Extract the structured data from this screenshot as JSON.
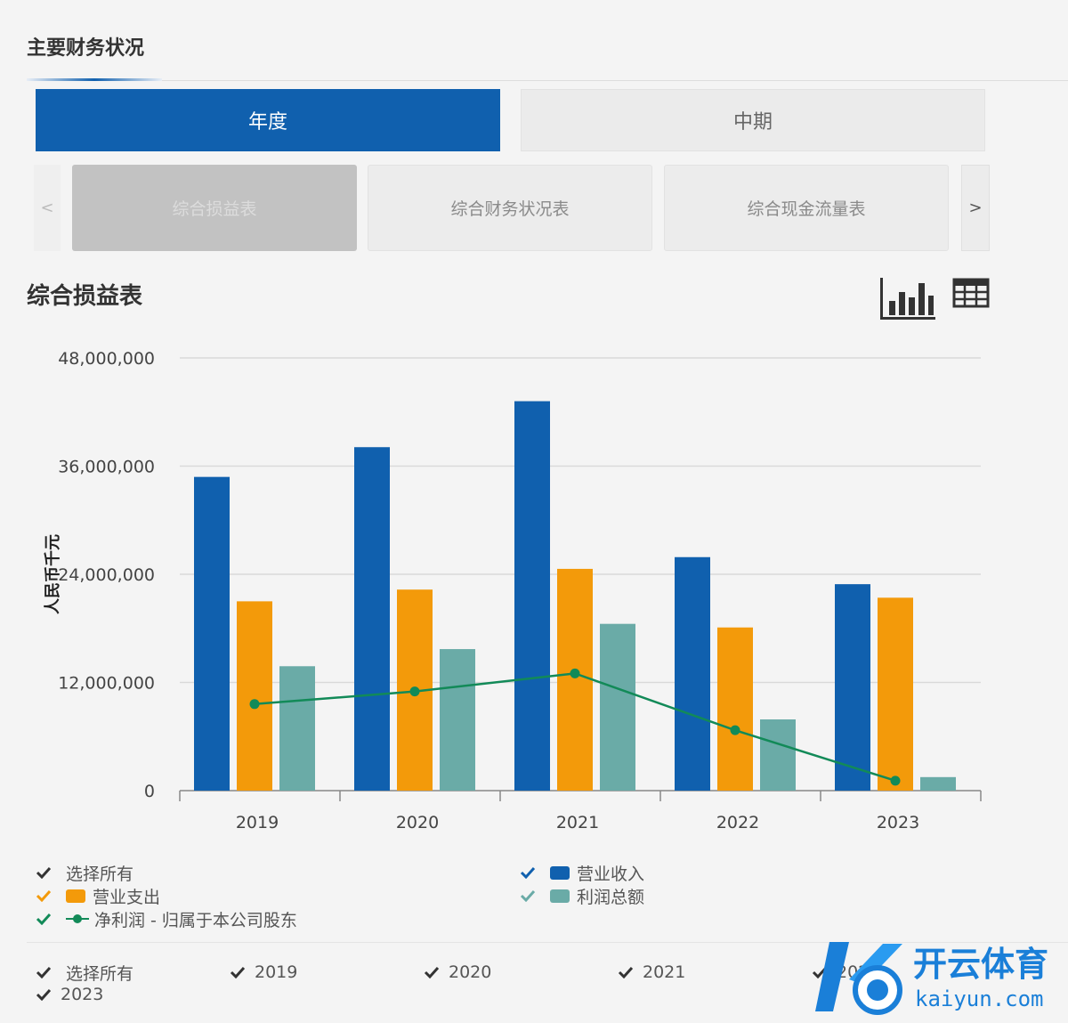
{
  "header": {
    "title": "主要财务状况"
  },
  "period_tabs": [
    {
      "label": "年度",
      "active": true
    },
    {
      "label": "中期",
      "active": false
    }
  ],
  "statement_tabs": {
    "prev": "<",
    "next": ">",
    "items": [
      {
        "label": "综合损益表",
        "active": true
      },
      {
        "label": "综合财务状况表",
        "active": false
      },
      {
        "label": "综合现金流量表",
        "active": false
      }
    ]
  },
  "chart_section": {
    "title": "综合损益表",
    "view_icons": [
      "bar-chart-icon",
      "table-icon"
    ]
  },
  "chart_data": {
    "type": "bar",
    "title": "",
    "xlabel": "",
    "ylabel": "人民币千元",
    "categories": [
      "2019",
      "2020",
      "2021",
      "2022",
      "2023"
    ],
    "ylim": [
      0,
      48000000
    ],
    "yticks": [
      "0",
      "12,000,000",
      "24,000,000",
      "36,000,000",
      "48,000,000"
    ],
    "ytick_values": [
      0,
      12000000,
      24000000,
      36000000,
      48000000
    ],
    "grid": true,
    "legend_position": "bottom",
    "series": [
      {
        "name": "营业收入",
        "kind": "bar",
        "color": "#1060ae",
        "values": [
          34800000,
          38100000,
          43200000,
          25900000,
          22900000
        ]
      },
      {
        "name": "营业支出",
        "kind": "bar",
        "color": "#f39a0a",
        "values": [
          21000000,
          22300000,
          24600000,
          18100000,
          21400000
        ]
      },
      {
        "name": "利润总额",
        "kind": "bar",
        "color": "#6aaba7",
        "values": [
          13800000,
          15700000,
          18500000,
          7900000,
          1500000
        ]
      },
      {
        "name": "净利润 - 归属于本公司股东",
        "kind": "line",
        "color": "#128a58",
        "values": [
          9600000,
          11000000,
          13000000,
          6700000,
          1100000
        ]
      }
    ]
  },
  "legend": {
    "select_all": "选择所有",
    "items": [
      "营业收入",
      "营业支出",
      "利润总额",
      "净利润 - 归属于本公司股东"
    ]
  },
  "year_filter": {
    "select_all": "选择所有",
    "years": [
      "2019",
      "2020",
      "2021",
      "2022",
      "2023"
    ]
  },
  "watermark": {
    "brand": "开云体育",
    "url": "kaiyun.com"
  }
}
